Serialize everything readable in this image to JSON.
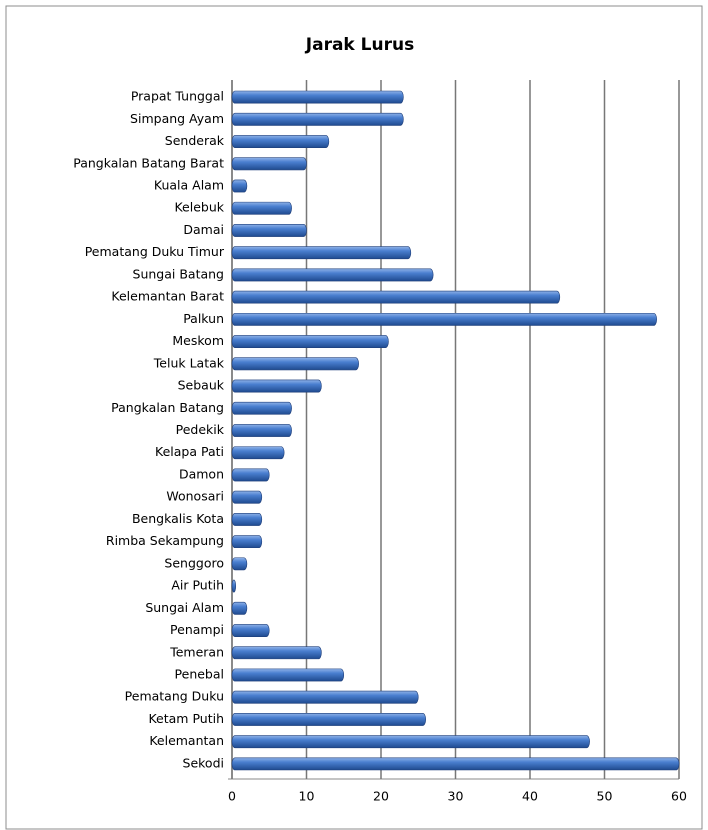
{
  "chart_data": {
    "type": "bar",
    "orientation": "horizontal",
    "title": "Jarak Lurus",
    "categories": [
      "Prapat Tunggal",
      "Simpang Ayam",
      "Senderak",
      "Pangkalan Batang Barat",
      "Kuala Alam",
      "Kelebuk",
      "Damai",
      "Pematang Duku Timur",
      "Sungai Batang",
      "Kelemantan Barat",
      "Palkun",
      "Meskom",
      "Teluk Latak",
      "Sebauk",
      "Pangkalan Batang",
      "Pedekik",
      "Kelapa Pati",
      "Damon",
      "Wonosari",
      "Bengkalis Kota",
      "Rimba Sekampung",
      "Senggoro",
      "Air Putih",
      "Sungai Alam",
      "Penampi",
      "Temeran",
      "Penebal",
      "Pematang Duku",
      "Ketam Putih",
      "Kelemantan",
      "Sekodi"
    ],
    "values": [
      23,
      23,
      13,
      10,
      2,
      8,
      10,
      24,
      27,
      44,
      57,
      21,
      17,
      12,
      8,
      8,
      7,
      5,
      4,
      4,
      4,
      2,
      0.5,
      2,
      5,
      12,
      15,
      25,
      26,
      48,
      60
    ],
    "color": "#3a6fc4",
    "xlim": [
      0,
      60
    ],
    "xticks": [
      0,
      10,
      20,
      30,
      40,
      50,
      60
    ],
    "grid": true
  }
}
